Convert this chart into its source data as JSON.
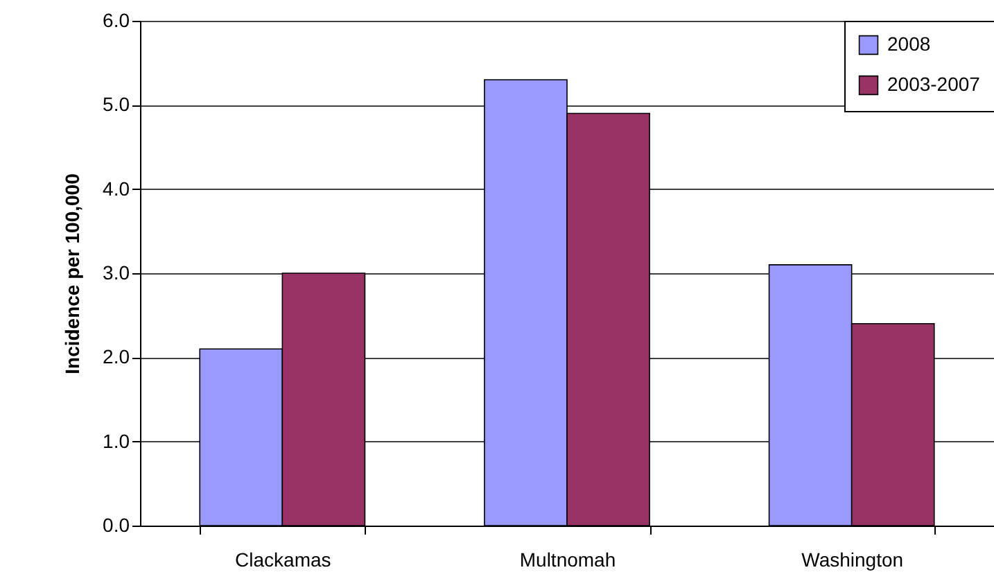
{
  "chart_data": {
    "type": "bar",
    "ylabel": "Incidence per 100,000",
    "categories": [
      "Clackamas",
      "Multnomah",
      "Washington"
    ],
    "series": [
      {
        "name": "2008",
        "color": "#9999ff",
        "values": [
          2.1,
          5.3,
          3.1
        ]
      },
      {
        "name": "2003-2007",
        "color": "#993366",
        "values": [
          3.0,
          4.9,
          2.4
        ]
      }
    ],
    "ylim": [
      0,
      6
    ],
    "yticks": [
      {
        "value": 0,
        "label": "0.0"
      },
      {
        "value": 1,
        "label": "1.0"
      },
      {
        "value": 2,
        "label": "2.0"
      },
      {
        "value": 3,
        "label": "3.0"
      },
      {
        "value": 4,
        "label": "4.0"
      },
      {
        "value": 5,
        "label": "5.0"
      },
      {
        "value": 6,
        "label": "6.0"
      }
    ],
    "grid": "y",
    "legend": "top right"
  }
}
